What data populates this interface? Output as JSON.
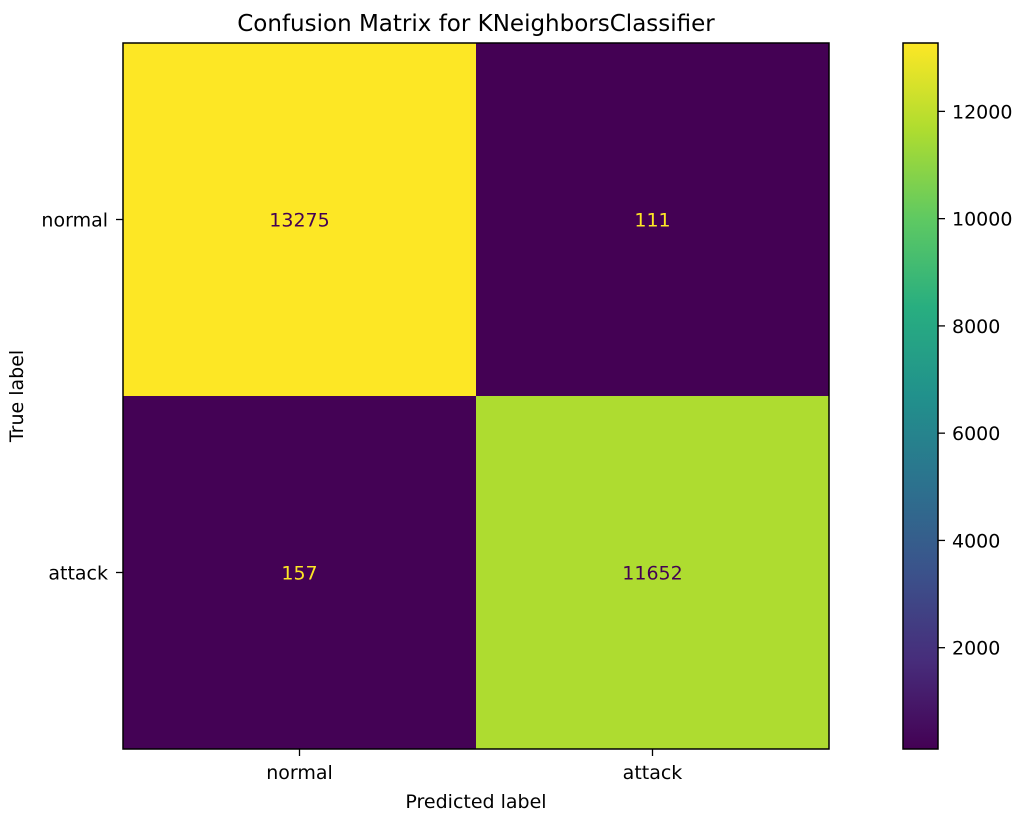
{
  "chart_data": {
    "type": "heatmap",
    "title": "Confusion Matrix for KNeighborsClassifier",
    "xlabel": "Predicted label",
    "ylabel": "True label",
    "x_categories": [
      "normal",
      "attack"
    ],
    "y_categories": [
      "normal",
      "attack"
    ],
    "values": [
      [
        13275,
        111
      ],
      [
        157,
        11652
      ]
    ],
    "colormap": "viridis",
    "colorbar": {
      "range": [
        111,
        13275
      ],
      "ticks": [
        2000,
        4000,
        6000,
        8000,
        10000,
        12000
      ]
    },
    "cell_text_colors": {
      "on_dark": "#fde725",
      "on_light": "#440154"
    },
    "grid": false,
    "legend": "colorbar-right"
  }
}
